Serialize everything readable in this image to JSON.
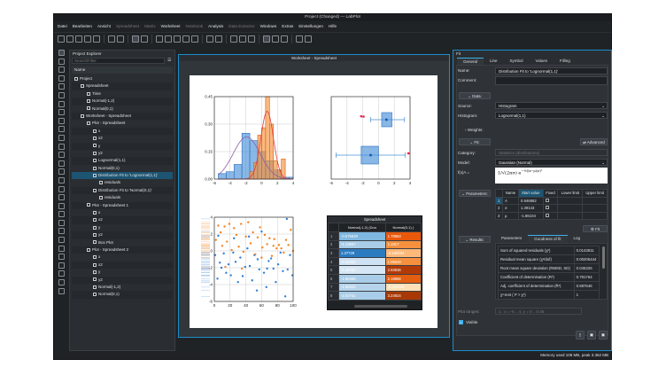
{
  "window": {
    "title": "Project (Changed) — LabPlot"
  },
  "menu": [
    {
      "label": "Datei",
      "enabled": true
    },
    {
      "label": "Bearbeiten",
      "enabled": true
    },
    {
      "label": "Ansicht",
      "enabled": true
    },
    {
      "label": "Spreadsheet",
      "enabled": false
    },
    {
      "label": "Matrix",
      "enabled": false
    },
    {
      "label": "Worksheet",
      "enabled": true
    },
    {
      "label": "Notebook",
      "enabled": false
    },
    {
      "label": "Analysis",
      "enabled": true
    },
    {
      "label": "Data Extractor",
      "enabled": false
    },
    {
      "label": "Windows",
      "enabled": true
    },
    {
      "label": "Extras",
      "enabled": true
    },
    {
      "label": "Einstellungen",
      "enabled": true
    },
    {
      "label": "Hilfe",
      "enabled": true
    }
  ],
  "toolbar_icons": [
    "new-icon",
    "open-icon",
    "save-icon",
    "print-icon",
    "export-icon",
    "|",
    "undo-icon",
    "redo-icon",
    "|",
    "select-icon",
    "view-icon",
    "|",
    "add-plot-icon",
    "add-text-icon",
    "add-image-icon",
    "add-legend-icon",
    "add-curve-icon",
    "|",
    "new-worksheet-icon",
    "new-spreadsheet-icon",
    "|",
    "layout-icon",
    "grid-icon",
    "zoom-fit-icon",
    "|",
    "pointer-icon",
    "zoom-in-icon",
    "zoom-out-icon",
    "|",
    "crosshair-icon",
    "magnify-icon"
  ],
  "vertical_tools": [
    "pointer-icon",
    "crosshair-icon",
    "zoom-select-icon",
    "zoom-x-icon",
    "zoom-y-icon",
    "pan-icon",
    "shift-left-icon",
    "shift-right-icon",
    "shift-up-icon",
    "shift-down-icon",
    "curve-icon",
    "histogram-icon",
    "boxplot-icon",
    "fit-icon",
    "smooth-icon",
    "integrate-icon",
    "differentiate-icon",
    "interpolate-icon",
    "fourier-icon",
    "convolution-icon",
    "correlation-icon",
    "text-icon",
    "image-icon",
    "reference-line-icon",
    "reference-range-icon",
    "marker-icon",
    "axis-icon",
    "legend-icon",
    "info-icon"
  ],
  "project_explorer": {
    "title": "Project Explorer",
    "search_placeholder": "Search/Filter",
    "column": "Name",
    "items": [
      {
        "label": "Project",
        "depth": 0,
        "icon": "project-icon"
      },
      {
        "label": "Spreadsheet",
        "depth": 1,
        "icon": "spreadsheet-icon"
      },
      {
        "label": "Time",
        "depth": 2,
        "icon": "column-icon"
      },
      {
        "label": "Normal(-1,2)",
        "depth": 2,
        "icon": "column-icon"
      },
      {
        "label": "Normal(0,1)",
        "depth": 2,
        "icon": "column-icon"
      },
      {
        "label": "Worksheet - Spreadsheet",
        "depth": 1,
        "icon": "worksheet-icon"
      },
      {
        "label": "Plot - Spreadsheet",
        "depth": 2,
        "icon": "plot-icon"
      },
      {
        "label": "x",
        "depth": 3,
        "icon": "axis-icon"
      },
      {
        "label": "x2",
        "depth": 3,
        "icon": "axis-icon"
      },
      {
        "label": "y",
        "depth": 3,
        "icon": "axis-icon"
      },
      {
        "label": "y2",
        "depth": 3,
        "icon": "axis-icon"
      },
      {
        "label": "Lognormal(1,1)",
        "depth": 3,
        "icon": "histogram-icon"
      },
      {
        "label": "Normal(0,1)",
        "depth": 3,
        "icon": "histogram-icon"
      },
      {
        "label": "Distribution Fit to 'Lognormal(1,1)'",
        "depth": 3,
        "icon": "fit-icon",
        "selected": true
      },
      {
        "label": "residuals",
        "depth": 4,
        "icon": "column-icon"
      },
      {
        "label": "Distribution Fit to 'Normal(0,1)'",
        "depth": 3,
        "icon": "fit-icon"
      },
      {
        "label": "residuals",
        "depth": 4,
        "icon": "column-icon"
      },
      {
        "label": "Plot - Spreadsheet 1",
        "depth": 2,
        "icon": "plot-icon"
      },
      {
        "label": "x",
        "depth": 3,
        "icon": "axis-icon"
      },
      {
        "label": "x2",
        "depth": 3,
        "icon": "axis-icon"
      },
      {
        "label": "y",
        "depth": 3,
        "icon": "axis-icon"
      },
      {
        "label": "y2",
        "depth": 3,
        "icon": "axis-icon"
      },
      {
        "label": "Box Plot",
        "depth": 3,
        "icon": "boxplot-icon"
      },
      {
        "label": "Plot - Spreadsheet 2",
        "depth": 2,
        "icon": "plot-icon"
      },
      {
        "label": "x",
        "depth": 3,
        "icon": "axis-icon"
      },
      {
        "label": "x2",
        "depth": 3,
        "icon": "axis-icon"
      },
      {
        "label": "y",
        "depth": 3,
        "icon": "axis-icon"
      },
      {
        "label": "y2",
        "depth": 3,
        "icon": "axis-icon"
      },
      {
        "label": "Normal(-1,2)",
        "depth": 3,
        "icon": "scatter-icon"
      },
      {
        "label": "Normal(0,1)",
        "depth": 3,
        "icon": "scatter-icon"
      }
    ]
  },
  "worksheet": {
    "title": "Worksheet - Spreadsheet"
  },
  "chart_data": [
    {
      "type": "bar",
      "subtype": "histogram",
      "xlim": [
        -6,
        4
      ],
      "ylim": [
        0,
        0.45
      ],
      "xticks": [
        "-6",
        "-4",
        "-2",
        "0",
        "2",
        "4"
      ],
      "yticks": [
        "0.00",
        "0.15",
        "0.30",
        "0.45"
      ],
      "grid": true,
      "series": [
        {
          "color": "#4a90d9",
          "bins": [
            [
              -5.5,
              -4.5,
              0.03
            ],
            [
              -4.5,
              -3.5,
              0.04
            ],
            [
              -3.5,
              -2.5,
              0.08
            ],
            [
              -2.5,
              -1.5,
              0.25
            ],
            [
              -1.5,
              -0.5,
              0.21
            ],
            [
              -0.5,
              0.5,
              0.15
            ],
            [
              0.5,
              1.5,
              0.1
            ],
            [
              1.5,
              2.5,
              0.05
            ],
            [
              2.5,
              3.5,
              0.01
            ],
            [
              3.5,
              4,
              0.01
            ]
          ]
        },
        {
          "color": "#f5923e",
          "bins": [
            [
              -1.5,
              -1,
              0.04
            ],
            [
              -1,
              -0.5,
              0.09
            ],
            [
              -0.5,
              0,
              0.24
            ],
            [
              0,
              0.5,
              0.28
            ],
            [
              0.5,
              1,
              0.45
            ],
            [
              1,
              1.5,
              0.3
            ],
            [
              1.5,
              2,
              0.1
            ],
            [
              2,
              2.5,
              0.05
            ],
            [
              2.5,
              3,
              0.11
            ]
          ]
        }
      ],
      "fits": [
        {
          "color": "#8e5fa8",
          "mean": -1.9,
          "sigma": 1.7,
          "peak": 0.23
        },
        {
          "color": "#e23b3b",
          "mean": 0.7,
          "sigma": 0.8,
          "peak": 0.37
        }
      ]
    },
    {
      "type": "boxplot",
      "xlim": [
        -6,
        4
      ],
      "xticks": [
        "-6",
        "-4",
        "-2",
        "0",
        "2",
        "4"
      ],
      "color": "#4a90d9",
      "outlier_color": "#e8234f",
      "boxes": [
        {
          "whisker_low": -1,
          "q1": 0.4,
          "median": 1,
          "q3": 1.7,
          "whisker_high": 3.3,
          "outliers": [
            -2.2,
            -1.9
          ]
        },
        {
          "whisker_low": -5.4,
          "q1": -2.2,
          "median": -1,
          "q3": 0,
          "whisker_high": 3.4,
          "outliers": [
            3.8
          ]
        }
      ]
    },
    {
      "type": "scatter",
      "xlim": [
        0,
        100
      ],
      "ylim": [
        -6,
        4
      ],
      "xticks": [
        "0",
        "20",
        "40",
        "60",
        "80",
        "100"
      ],
      "yticks": [
        "4",
        "2",
        "0",
        "-2",
        "-4",
        "-6"
      ],
      "grid": true,
      "series": [
        {
          "color": "#2f7fd8",
          "x": [
            1,
            4,
            7,
            9,
            12,
            15,
            18,
            21,
            24,
            27,
            30,
            33,
            36,
            39,
            42,
            45,
            48,
            51,
            54,
            57,
            60,
            63,
            66,
            69,
            72,
            75,
            78,
            81,
            84,
            87,
            90,
            93,
            96,
            99,
            5,
            25,
            44,
            55,
            67,
            92
          ],
          "y": [
            -0.5,
            -3.3,
            -1.4,
            -2,
            -0.3,
            -2.6,
            -1.6,
            -2.9,
            -0.2,
            -1.3,
            -3.7,
            -0.8,
            -3,
            -1.9,
            0.3,
            -1.8,
            -3.5,
            -0.5,
            -4.7,
            -2.2,
            2.3,
            -2.6,
            -4.3,
            -1.2,
            -0.9,
            -2.1,
            -3.7,
            -1.6,
            -0.2,
            -2.4,
            -5.4,
            -2.2,
            -0.5,
            -2.9,
            1.8,
            1.5,
            1.7,
            -1,
            -2.1,
            3.8
          ]
        },
        {
          "color": "#f5821f",
          "x": [
            2,
            5,
            8,
            10,
            13,
            16,
            19,
            22,
            25,
            28,
            31,
            34,
            37,
            40,
            43,
            46,
            49,
            52,
            55,
            58,
            61,
            64,
            67,
            70,
            73,
            76,
            79,
            82,
            85,
            88,
            91,
            94,
            97,
            100,
            14,
            35,
            60,
            75
          ],
          "y": [
            1.3,
            3,
            2.2,
            0.6,
            2.9,
            1.1,
            3.2,
            0.1,
            2.7,
            1.9,
            0.5,
            3.2,
            -0.1,
            1.7,
            3.4,
            0.9,
            2.2,
            -0.4,
            1.6,
            2.8,
            0.4,
            1.9,
            0.8,
            1.5,
            -0.6,
            1.4,
            0.3,
            0.7,
            0.3,
            -0.2,
            1.3,
            0.7,
            2.5,
            0,
            -1.9,
            -2.1,
            -0.8,
            0.6
          ]
        }
      ]
    }
  ],
  "embedded_spreadsheet": {
    "title": "Spreadsheet",
    "columns": [
      "Normal(-1,2) (Dou",
      "Normal(0,1) ("
    ],
    "rows": [
      {
        "n": "1",
        "a": "-0.575929",
        "b": "1.78963",
        "ca": "#7fb7e0",
        "cb": "#e8590c"
      },
      {
        "n": "2",
        "a": "-1.13557",
        "b": "1.1817",
        "ca": "#a9cde8",
        "cb": "#f5913e"
      },
      {
        "n": "3",
        "a": "1.37729",
        "b": "-0.190594",
        "ca": "#2b7bc0",
        "cb": "#fdb97a"
      },
      {
        "n": "4",
        "a": "-0.30453",
        "b": "1.06549",
        "ca": "#cfe2f3",
        "cb": "#f5913e"
      },
      {
        "n": "5",
        "a": "-2.46784",
        "b": "2.93936",
        "ca": "#d6e6f5",
        "cb": "#b23a06"
      },
      {
        "n": "6",
        "a": "-1.55465",
        "b": "2.18988",
        "ca": "#a9cde8",
        "cb": "#e35e10"
      },
      {
        "n": "7",
        "a": "-1.95323",
        "b": "-0.512829",
        "ca": "#b5d4ec",
        "cb": "#fee0b6"
      },
      {
        "n": "8",
        "a": "-2.02751",
        "b": "3.24924",
        "ca": "#a9cde8",
        "cb": "#a83805"
      }
    ]
  },
  "fit_panel": {
    "title": "Fit",
    "tabs": [
      "General",
      "Line",
      "Symbol",
      "Values",
      "Filling"
    ],
    "name_label": "Name:",
    "name_value": "Distribution Fit to 'Lognormal(1,1)'",
    "comment_label": "Comment:",
    "comment_value": "",
    "data_button": "Data:",
    "source_label": "Source:",
    "source_value": "Histogram",
    "histogram_label": "Histogram:",
    "histogram_value": "Lognormal(1,1)",
    "weights_label": "Weights:",
    "fit_section": "Fit:",
    "advanced_button": "Advanced",
    "category_label": "Category:",
    "category_value": "Statistics (distributions)",
    "model_label": "Model:",
    "model_value": "Gaussian (Normal)",
    "formula_label": "f(x|A =",
    "parameters_button": "Parameters:",
    "param_headers": [
      "Name",
      "Start value",
      "Fixed",
      "Lower limit",
      "Upper limit"
    ],
    "params": [
      {
        "n": "1",
        "name": "A",
        "start": "0.946862"
      },
      {
        "n": "2",
        "name": "σ",
        "start": "1.39143"
      },
      {
        "n": "3",
        "name": "μ",
        "start": "-1.86104"
      }
    ],
    "fit_button": "Fit",
    "results_button": "Results:",
    "results_tabs": [
      "Parameters",
      "Goodness of fit",
      "Log"
    ],
    "results": [
      {
        "k": "Sum of squared residuals (χ²)",
        "v": "0.0143811"
      },
      {
        "k": "Residual mean square (χ²/dof)",
        "v": "0.00205444"
      },
      {
        "k": "Root mean square deviation (RMSD, SD)",
        "v": "0.045326"
      },
      {
        "k": "Coefficient of determination (R²)",
        "v": "0.791764"
      },
      {
        "k": "Adj. coefficient of determination (R̄²)",
        "v": "0.687646"
      },
      {
        "k": "χ²-test ( P > χ²)",
        "v": "1"
      }
    ],
    "plot_ranges_label": "Plot ranges:",
    "plot_ranges_value": "1 : x = -6 .. 4, y = 0 .. 0.45",
    "visible_label": "Visible",
    "visible": true
  },
  "status": "Memory used 108 MB, peak 3.362 MB"
}
